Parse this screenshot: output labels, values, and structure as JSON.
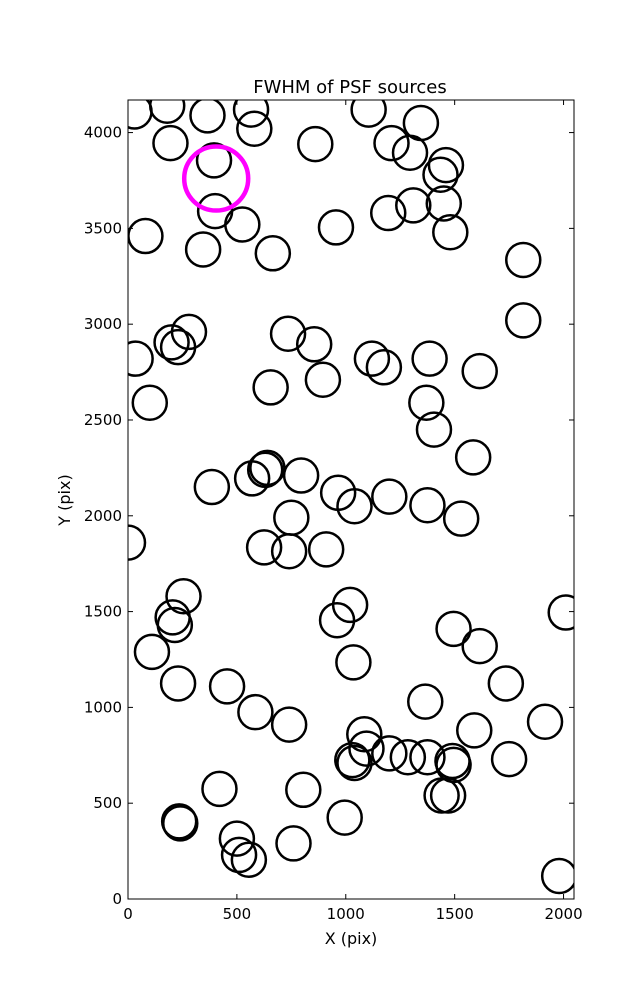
{
  "chart_data": {
    "type": "scatter",
    "title": "FWHM of PSF sources",
    "xlabel": "X (pix)",
    "ylabel": "Y (pix)",
    "xlim": [
      0,
      2048
    ],
    "ylim": [
      0,
      4170
    ],
    "xticks": [
      0,
      500,
      1000,
      1500,
      2000
    ],
    "yticks": [
      0,
      500,
      1000,
      1500,
      2000,
      2500,
      3000,
      3500,
      4000
    ],
    "grid": false,
    "marker": "open-circle",
    "series": [
      {
        "color": "#000000",
        "points": [
          [
            30,
            4110
          ],
          [
            180,
            4140
          ],
          [
            365,
            4090
          ],
          [
            565,
            4120
          ],
          [
            1105,
            4120
          ],
          [
            195,
            3945
          ],
          [
            580,
            4020
          ],
          [
            860,
            3940
          ],
          [
            1210,
            3945
          ],
          [
            1345,
            4050
          ],
          [
            395,
            3855
          ],
          [
            1295,
            3895
          ],
          [
            1435,
            3780
          ],
          [
            1460,
            3830
          ],
          [
            400,
            3590
          ],
          [
            1195,
            3580
          ],
          [
            1310,
            3620
          ],
          [
            1450,
            3630
          ],
          [
            80,
            3460
          ],
          [
            525,
            3520
          ],
          [
            955,
            3505
          ],
          [
            1480,
            3480
          ],
          [
            345,
            3390
          ],
          [
            665,
            3370
          ],
          [
            1815,
            3335
          ],
          [
            1815,
            3020
          ],
          [
            35,
            2820
          ],
          [
            200,
            2905
          ],
          [
            230,
            2880
          ],
          [
            280,
            2960
          ],
          [
            735,
            2950
          ],
          [
            855,
            2895
          ],
          [
            1120,
            2820
          ],
          [
            1175,
            2775
          ],
          [
            1385,
            2820
          ],
          [
            1615,
            2755
          ],
          [
            655,
            2670
          ],
          [
            895,
            2710
          ],
          [
            1370,
            2590
          ],
          [
            100,
            2590
          ],
          [
            1405,
            2450
          ],
          [
            1585,
            2305
          ],
          [
            640,
            2250
          ],
          [
            630,
            2240
          ],
          [
            570,
            2195
          ],
          [
            795,
            2210
          ],
          [
            385,
            2150
          ],
          [
            965,
            2120
          ],
          [
            1040,
            2050
          ],
          [
            1200,
            2100
          ],
          [
            1375,
            2055
          ],
          [
            1530,
            1985
          ],
          [
            0,
            1860
          ],
          [
            750,
            1990
          ],
          [
            625,
            1835
          ],
          [
            740,
            1815
          ],
          [
            910,
            1825
          ],
          [
            255,
            1580
          ],
          [
            205,
            1470
          ],
          [
            215,
            1430
          ],
          [
            1020,
            1535
          ],
          [
            960,
            1455
          ],
          [
            1035,
            1235
          ],
          [
            2010,
            1495
          ],
          [
            1495,
            1410
          ],
          [
            1615,
            1320
          ],
          [
            110,
            1290
          ],
          [
            230,
            1125
          ],
          [
            455,
            1110
          ],
          [
            1735,
            1125
          ],
          [
            1365,
            1030
          ],
          [
            1915,
            925
          ],
          [
            585,
            975
          ],
          [
            740,
            910
          ],
          [
            1590,
            880
          ],
          [
            1085,
            860
          ],
          [
            1095,
            785
          ],
          [
            1030,
            725
          ],
          [
            1040,
            710
          ],
          [
            1200,
            760
          ],
          [
            1285,
            740
          ],
          [
            1375,
            740
          ],
          [
            1490,
            720
          ],
          [
            1495,
            700
          ],
          [
            1750,
            730
          ],
          [
            420,
            575
          ],
          [
            805,
            570
          ],
          [
            1440,
            540
          ],
          [
            1470,
            540
          ],
          [
            235,
            405
          ],
          [
            240,
            395
          ],
          [
            995,
            425
          ],
          [
            500,
            315
          ],
          [
            510,
            230
          ],
          [
            555,
            205
          ],
          [
            760,
            290
          ],
          [
            1980,
            120
          ]
        ]
      },
      {
        "color": "#ff00ff",
        "points": [
          [
            405,
            3760
          ]
        ]
      }
    ]
  }
}
